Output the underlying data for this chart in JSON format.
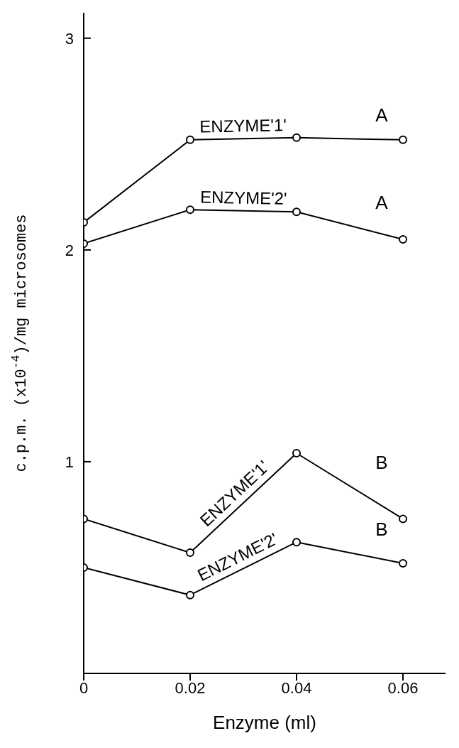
{
  "chart_data": {
    "type": "line",
    "xlabel": "Enzyme (ml)",
    "ylabel": "c.p.m. (x10$^{-4}$)/mg microsomes",
    "x": [
      0,
      0.02,
      0.04,
      0.06
    ],
    "series": [
      {
        "name": "ENZYME'1'",
        "color": "#000000",
        "values": [
          2.13,
          2.52,
          2.53,
          2.52
        ]
      },
      {
        "name": "ENZYME'2'",
        "color": "#000000",
        "values": [
          2.03,
          2.19,
          2.18,
          2.05
        ]
      },
      {
        "name": "ENZYME'1'",
        "color": "#000000",
        "values": [
          0.73,
          0.57,
          1.04,
          0.73
        ]
      },
      {
        "name": "ENZYME'2'",
        "color": "#000000",
        "values": [
          0.5,
          0.37,
          0.62,
          0.52
        ]
      }
    ],
    "annotations": [
      "A",
      "A",
      "B",
      "B"
    ],
    "xlim": [
      0,
      0.068
    ],
    "xticks": [
      0,
      0.02,
      0.04,
      0.06
    ],
    "ylim": [
      0,
      3.12
    ],
    "yticks": [
      1,
      2,
      3
    ],
    "grid": false,
    "marker": "circle",
    "line_style": "solid"
  }
}
